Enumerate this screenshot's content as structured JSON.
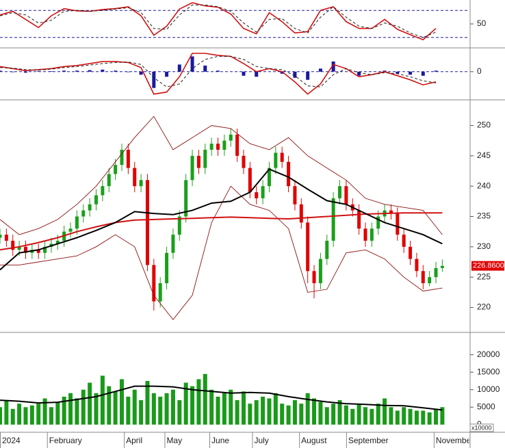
{
  "chart_data": [
    {
      "type": "line",
      "xlim": [
        0,
        220
      ],
      "ylim": [
        0,
        100
      ],
      "yticks": [
        50
      ],
      "hlines": [
        80,
        20
      ],
      "hline_color": "#1a1aa0",
      "series": [
        {
          "color": "#d01010",
          "style": "solid",
          "x": [
            0,
            6,
            12,
            18,
            24,
            30,
            36,
            42,
            48,
            54,
            60,
            66,
            72,
            78,
            84,
            90,
            96,
            102,
            108,
            114,
            120,
            126,
            132,
            138,
            144,
            150,
            156,
            162,
            168,
            174,
            180,
            186,
            192,
            198,
            204
          ],
          "values": [
            70,
            78,
            60,
            42,
            68,
            84,
            79,
            78,
            82,
            84,
            88,
            68,
            25,
            45,
            83,
            97,
            90,
            87,
            72,
            40,
            28,
            75,
            55,
            30,
            33,
            80,
            88,
            55,
            40,
            40,
            60,
            38,
            26,
            15,
            40
          ]
        },
        {
          "color": "#202020",
          "style": "dashed",
          "x": [
            0,
            6,
            12,
            18,
            24,
            30,
            36,
            42,
            48,
            54,
            60,
            66,
            72,
            78,
            84,
            90,
            96,
            102,
            108,
            114,
            120,
            126,
            132,
            138,
            144,
            150,
            156,
            162,
            168,
            174,
            180,
            186,
            192,
            198,
            204
          ],
          "values": [
            68,
            75,
            70,
            52,
            58,
            78,
            80,
            78,
            80,
            83,
            86,
            75,
            40,
            38,
            70,
            92,
            92,
            88,
            78,
            52,
            32,
            60,
            62,
            40,
            30,
            65,
            88,
            65,
            45,
            40,
            52,
            45,
            30,
            20,
            32
          ]
        }
      ]
    },
    {
      "type": "line",
      "xlim": [
        0,
        220
      ],
      "ylim": [
        -2.7,
        2.2
      ],
      "yticks": [
        0
      ],
      "hlines": [
        0
      ],
      "hline_color": "#1a1aa0",
      "histogram": {
        "color": "#1a1aa0",
        "x": [
          0,
          6,
          12,
          18,
          24,
          30,
          36,
          42,
          48,
          54,
          60,
          66,
          72,
          78,
          84,
          90,
          96,
          102,
          108,
          114,
          120,
          126,
          132,
          138,
          144,
          150,
          156,
          162,
          168,
          174,
          180,
          186,
          192,
          198,
          204
        ],
        "values": [
          0.1,
          -0.05,
          -0.1,
          0.05,
          0.05,
          0.1,
          0.1,
          0.15,
          0.2,
          0.1,
          -0.05,
          -0.3,
          -1.6,
          -0.5,
          0.7,
          1.5,
          0.6,
          0.1,
          0,
          -0.4,
          -0.5,
          0,
          -0.2,
          -0.6,
          -0.8,
          0.3,
          1.0,
          0,
          -0.4,
          0,
          0.1,
          -0.2,
          -0.3,
          -0.4,
          0.1
        ]
      },
      "series": [
        {
          "color": "#d01010",
          "style": "solid",
          "x": [
            0,
            6,
            12,
            18,
            24,
            30,
            36,
            42,
            48,
            54,
            60,
            66,
            72,
            78,
            84,
            90,
            96,
            102,
            108,
            114,
            120,
            126,
            132,
            138,
            144,
            150,
            156,
            162,
            168,
            174,
            180,
            186,
            192,
            198,
            204
          ],
          "values": [
            0.5,
            0.3,
            0.1,
            0.2,
            0.3,
            0.5,
            0.6,
            0.8,
            1.0,
            1.0,
            0.9,
            0.4,
            -2.2,
            -2.0,
            -0.5,
            1.8,
            1.8,
            1.6,
            1.5,
            0.8,
            0,
            0.3,
            0,
            -1.0,
            -2.2,
            -1.2,
            0.7,
            0.3,
            -0.5,
            -0.3,
            0,
            -0.4,
            -0.8,
            -1.3,
            -1.0
          ]
        },
        {
          "color": "#202020",
          "style": "dashed",
          "x": [
            0,
            6,
            12,
            18,
            24,
            30,
            36,
            42,
            48,
            54,
            60,
            66,
            72,
            78,
            84,
            90,
            96,
            102,
            108,
            114,
            120,
            126,
            132,
            138,
            144,
            150,
            156,
            162,
            168,
            174,
            180,
            186,
            192,
            198,
            204
          ],
          "values": [
            0.4,
            0.35,
            0.2,
            0.15,
            0.25,
            0.4,
            0.5,
            0.65,
            0.8,
            0.9,
            0.95,
            0.7,
            -0.6,
            -1.5,
            -1.2,
            0.3,
            1.2,
            1.5,
            1.5,
            1.2,
            0.5,
            0.3,
            0.2,
            -0.4,
            -1.4,
            -1.5,
            -0.3,
            0.3,
            -0.1,
            -0.3,
            -0.1,
            -0.2,
            -0.5,
            -0.9,
            -1.1
          ]
        }
      ]
    },
    {
      "type": "candlestick",
      "xlim": [
        0,
        220
      ],
      "ylim": [
        216,
        254
      ],
      "yticks": [
        220,
        225,
        230,
        235,
        240,
        245,
        250
      ],
      "up_color": "#1aa01a",
      "down_color": "#e00000",
      "x": [
        0,
        3,
        6,
        9,
        12,
        15,
        18,
        21,
        24,
        27,
        30,
        33,
        36,
        39,
        42,
        45,
        48,
        51,
        54,
        57,
        60,
        63,
        66,
        69,
        72,
        75,
        78,
        81,
        84,
        87,
        90,
        93,
        96,
        99,
        102,
        105,
        108,
        111,
        114,
        117,
        120,
        123,
        126,
        129,
        132,
        135,
        138,
        141,
        144,
        147,
        150,
        153,
        156,
        159,
        162,
        165,
        168,
        171,
        174,
        177,
        180,
        183,
        186,
        189,
        192,
        195,
        198,
        201,
        204,
        207
      ],
      "open": [
        231.5,
        232,
        231,
        229.5,
        230,
        229,
        229.5,
        229,
        230,
        230.5,
        231,
        232.5,
        233,
        235,
        236,
        237,
        238.5,
        240,
        242,
        243.5,
        246,
        243,
        240,
        241,
        227,
        221,
        224,
        229,
        232,
        235,
        241,
        245,
        243,
        246,
        247,
        246,
        247.5,
        248.5,
        245,
        243,
        239,
        238,
        240,
        243,
        245.5,
        244,
        240,
        237,
        234,
        226,
        224,
        228,
        231,
        238,
        240,
        237,
        236,
        233,
        231,
        233,
        235,
        236,
        235.5,
        232,
        230,
        228,
        226,
        224,
        225,
        226.5
      ],
      "high": [
        233,
        233,
        232,
        231,
        231,
        230.5,
        230.5,
        231,
        231.5,
        232,
        233.5,
        234,
        236,
        237,
        238,
        239.5,
        241,
        243,
        244.5,
        247,
        247,
        244,
        242,
        242,
        228,
        225,
        230,
        233,
        236,
        242,
        246,
        246,
        247,
        248,
        248,
        248.5,
        249.5,
        249.5,
        246,
        244,
        240,
        241,
        244,
        246.5,
        246.5,
        245,
        241,
        238,
        235,
        227,
        229,
        232,
        239,
        241,
        241,
        238,
        237,
        234,
        234,
        236,
        237,
        237,
        236.5,
        233,
        231,
        229,
        227,
        226,
        227.5,
        227.9
      ],
      "low": [
        230.5,
        230,
        228.5,
        228.5,
        228,
        228,
        228,
        228,
        229,
        229.5,
        230,
        231.5,
        232,
        234,
        235,
        236,
        237.5,
        239,
        241,
        242.5,
        242,
        239,
        239,
        226,
        219.5,
        220,
        223,
        228,
        231,
        234,
        240,
        242,
        242,
        245,
        245,
        245,
        246.5,
        244,
        242,
        238,
        237,
        237,
        239,
        242,
        243,
        239,
        236,
        233,
        224,
        221.5,
        223,
        227,
        230,
        237,
        236,
        235,
        232,
        230,
        230,
        232,
        234,
        234.5,
        231,
        229,
        227,
        225,
        223,
        223.5,
        224,
        225.9
      ],
      "close": [
        232,
        231,
        229.5,
        230,
        229,
        229.5,
        229,
        230,
        230.5,
        231,
        232.5,
        233,
        235,
        236,
        237,
        238.5,
        240,
        242,
        243.5,
        246,
        243,
        240,
        241,
        227,
        221,
        224,
        229,
        232,
        235,
        241,
        245,
        243,
        246,
        247,
        246,
        247.5,
        248.5,
        245,
        243,
        239,
        238,
        240,
        243,
        245.5,
        244,
        240,
        237,
        234,
        226,
        224,
        228,
        231,
        238,
        240,
        237,
        236,
        233,
        231,
        233,
        235,
        236,
        235.5,
        232,
        230,
        228,
        226,
        224,
        225,
        226.5,
        226.86
      ],
      "series": [
        {
          "color": "#8b1010",
          "style": "thin",
          "x": [
            0,
            9,
            18,
            27,
            36,
            45,
            54,
            63,
            72,
            81,
            90,
            99,
            108,
            117,
            126,
            135,
            144,
            153,
            162,
            171,
            180,
            189,
            198,
            207
          ],
          "values": [
            234.5,
            232,
            233,
            234.5,
            237,
            240,
            244,
            248,
            251.5,
            246,
            248,
            250,
            249.5,
            247,
            246,
            248,
            245,
            243,
            241,
            238,
            237,
            236.5,
            236,
            232
          ]
        },
        {
          "color": "#8b1010",
          "style": "thin",
          "x": [
            0,
            9,
            18,
            27,
            36,
            45,
            54,
            63,
            72,
            81,
            90,
            99,
            108,
            117,
            126,
            135,
            144,
            153,
            162,
            171,
            180,
            189,
            198,
            207
          ],
          "values": [
            227,
            227,
            227.5,
            228,
            228.5,
            230,
            232,
            230,
            222,
            218,
            222,
            234,
            240,
            237,
            236,
            233,
            222.5,
            223,
            229,
            229.5,
            228,
            225,
            222.7,
            223.2
          ]
        },
        {
          "color": "#d01010",
          "style": "thick",
          "x": [
            0,
            9,
            18,
            27,
            36,
            45,
            54,
            63,
            72,
            81,
            90,
            99,
            108,
            117,
            126,
            135,
            144,
            153,
            162,
            171,
            180,
            189,
            198,
            207
          ],
          "values": [
            229.5,
            230,
            230.7,
            231.5,
            232.5,
            233.3,
            234,
            234.4,
            234.5,
            234.6,
            234.7,
            234.8,
            234.9,
            234.8,
            234.7,
            234.6,
            234.8,
            235,
            235.2,
            235.4,
            235.5,
            235.6,
            235.6,
            235.6
          ]
        },
        {
          "color": "#000000",
          "style": "thick",
          "x": [
            0,
            9,
            18,
            27,
            36,
            45,
            54,
            63,
            72,
            81,
            90,
            99,
            108,
            117,
            126,
            135,
            144,
            153,
            162,
            171,
            180,
            189,
            198,
            207
          ],
          "values": [
            226.2,
            229,
            229.5,
            230.5,
            231.5,
            232.7,
            234,
            235.8,
            235.5,
            235.3,
            236,
            237.2,
            237.5,
            239,
            242.8,
            241.5,
            239.5,
            237.6,
            237,
            235.5,
            234,
            233,
            232,
            230.5
          ]
        }
      ],
      "price_tag": {
        "value": 226.86,
        "label": "226.8600"
      }
    },
    {
      "type": "bar",
      "xlim": [
        0,
        220
      ],
      "ylim": [
        -1800,
        26000
      ],
      "yticks": [
        0,
        5000,
        10000,
        15000,
        20000
      ],
      "color": "#1a9a1a",
      "unit_label": "x10000",
      "x": [
        0,
        3,
        6,
        9,
        12,
        15,
        18,
        21,
        24,
        27,
        30,
        33,
        36,
        39,
        42,
        45,
        48,
        51,
        54,
        57,
        60,
        63,
        66,
        69,
        72,
        75,
        78,
        81,
        84,
        87,
        90,
        93,
        96,
        99,
        102,
        105,
        108,
        111,
        114,
        117,
        120,
        123,
        126,
        129,
        132,
        135,
        138,
        141,
        144,
        147,
        150,
        153,
        156,
        159,
        162,
        165,
        168,
        171,
        174,
        177,
        180,
        183,
        186,
        189,
        192,
        195,
        198,
        201,
        204,
        207
      ],
      "values": [
        5000,
        7000,
        4500,
        6000,
        5000,
        5500,
        6000,
        7500,
        5000,
        6500,
        8000,
        9000,
        7500,
        10000,
        12000,
        9000,
        14000,
        11000,
        9500,
        13000,
        8000,
        10000,
        7000,
        12500,
        9000,
        8000,
        9000,
        10000,
        7000,
        12000,
        11000,
        13000,
        14500,
        10000,
        8000,
        9000,
        10000,
        7000,
        9500,
        6000,
        7000,
        8000,
        7500,
        9000,
        6000,
        5500,
        7000,
        6000,
        9000,
        7500,
        6500,
        5000,
        6000,
        7000,
        5500,
        4500,
        6000,
        5000,
        4500,
        6000,
        7500,
        5000,
        4000,
        5000,
        4500,
        4000,
        4000,
        3500,
        4500,
        5000
      ],
      "series": [
        {
          "color": "#000000",
          "style": "thick",
          "x": [
            0,
            9,
            18,
            27,
            36,
            45,
            54,
            63,
            72,
            81,
            90,
            99,
            108,
            117,
            126,
            135,
            144,
            153,
            162,
            171,
            180,
            189,
            198,
            207
          ],
          "values": [
            7000,
            6700,
            6200,
            6400,
            7200,
            8000,
            9500,
            11000,
            11000,
            10800,
            10000,
            9500,
            9000,
            9200,
            9000,
            8000,
            7200,
            6500,
            6000,
            5800,
            5500,
            5400,
            4800,
            4200
          ]
        }
      ],
      "xticks": [
        {
          "value": 0,
          "label": "2024"
        },
        {
          "value": 22,
          "label": "February"
        },
        {
          "value": 58,
          "label": "April"
        },
        {
          "value": 77,
          "label": "May"
        },
        {
          "value": 98,
          "label": "June"
        },
        {
          "value": 118,
          "label": "July"
        },
        {
          "value": 140,
          "label": "August"
        },
        {
          "value": 162,
          "label": "September"
        },
        {
          "value": 203,
          "label": "November"
        }
      ]
    }
  ]
}
